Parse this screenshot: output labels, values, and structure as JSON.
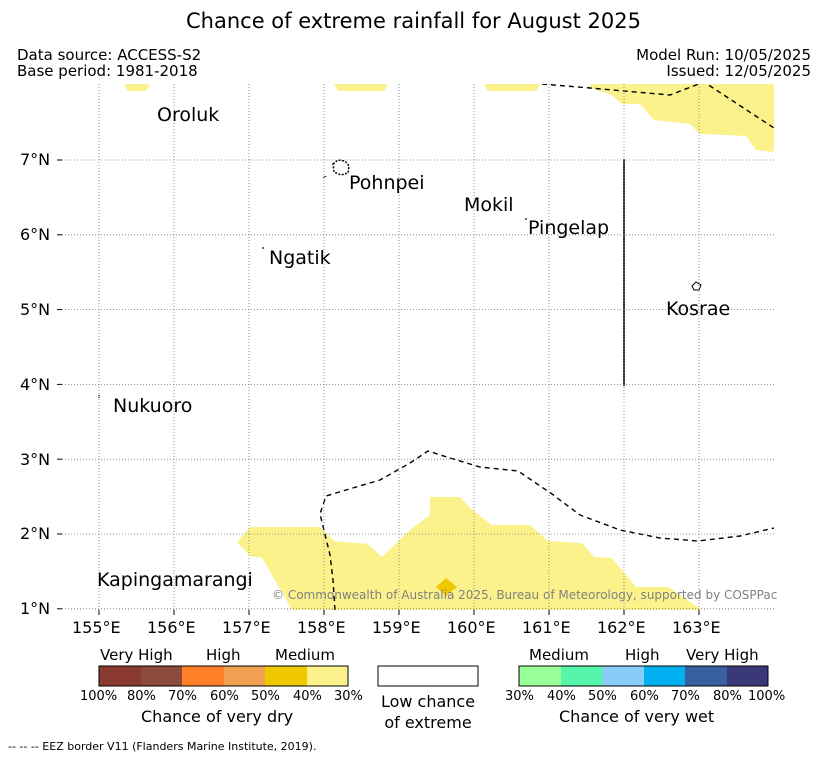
{
  "title": "Chance of extreme rainfall for August 2025",
  "header": {
    "data_source": "Data source: ACCESS-S2",
    "base_period": "Base period: 1981-2018",
    "model_run": "Model Run: 10/05/2025",
    "issued": "Issued: 12/05/2025"
  },
  "map": {
    "lat_labels": [
      "7°N",
      "6°N",
      "5°N",
      "4°N",
      "3°N",
      "2°N",
      "1°N"
    ],
    "lon_labels": [
      "155°E",
      "156°E",
      "157°E",
      "158°E",
      "159°E",
      "160°E",
      "161°E",
      "162°E",
      "163°E"
    ],
    "places": {
      "oroluk": "Oroluk",
      "pohnpei": "Pohnpei",
      "mokil": "Mokil",
      "pingelap": "Pingelap",
      "ngatik": "Ngatik",
      "kosrae": "Kosrae",
      "nukuoro": "Nukuoro",
      "kapingamarangi": "Kapingamarangi"
    },
    "credit": "© Commonwealth of Australia 2025, Bureau of Meteorology, supported by COSPPac",
    "colors": {
      "medium_dry": "#fbf28c",
      "high_dry_40_50": "#f0c800",
      "eez_line": "#000000"
    }
  },
  "legend": {
    "dry": {
      "categories": [
        "Very High",
        "High",
        "Medium"
      ],
      "percents": [
        "100%",
        "80%",
        "70%",
        "60%",
        "50%",
        "40%",
        "30%"
      ],
      "colors": [
        "#8b3a32",
        "#8b4a3a",
        "#ff8028",
        "#f0a050",
        "#f0c800",
        "#fbf28c"
      ],
      "caption": "Chance of very dry"
    },
    "neutral": {
      "line1": "Low chance",
      "line2": "of extreme"
    },
    "wet": {
      "categories": [
        "Medium",
        "High",
        "Very High"
      ],
      "percents": [
        "30%",
        "40%",
        "50%",
        "60%",
        "70%",
        "80%",
        "100%"
      ],
      "colors": [
        "#99ff99",
        "#55f5aa",
        "#88ccf8",
        "#00b0f0",
        "#3860a0",
        "#3a3878"
      ],
      "caption": "Chance of very wet"
    }
  },
  "footnote": "-- -- -- EEZ border V11 (Flanders Marine Institute, 2019)."
}
